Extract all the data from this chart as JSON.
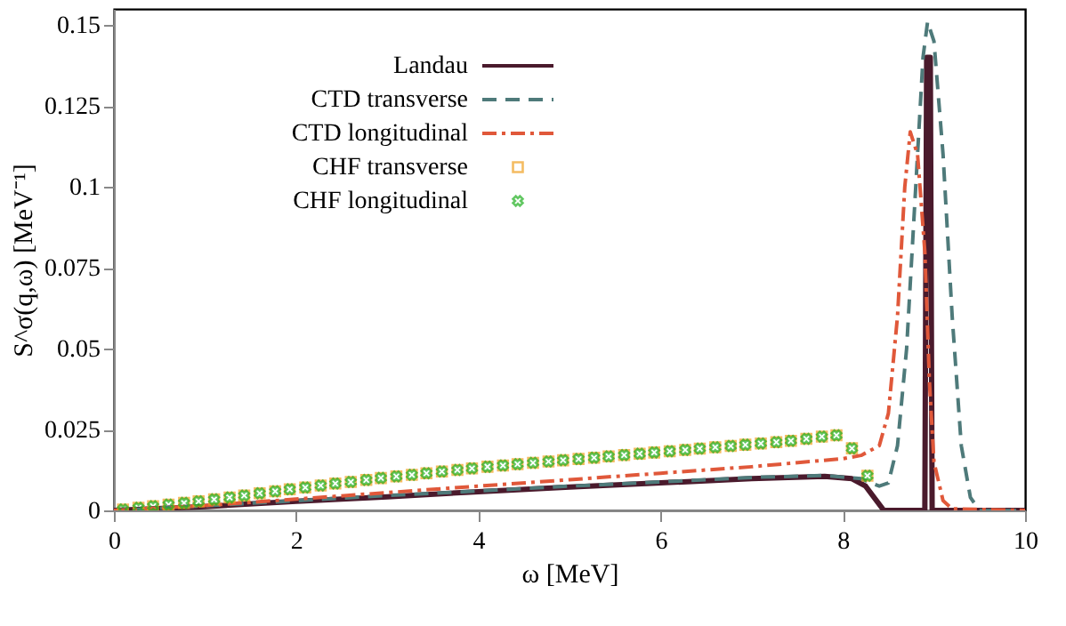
{
  "chart_data": {
    "type": "line",
    "xlabel": "ω [MeV]",
    "ylabel": "S^σ(q,ω) [MeV⁻¹]",
    "xlim": [
      0,
      10
    ],
    "xticks": [
      0,
      2,
      4,
      6,
      8,
      10
    ],
    "ylim": [
      0,
      0.155
    ],
    "yticks": [
      0,
      0.025,
      0.05,
      0.075,
      0.1,
      0.125,
      0.15
    ],
    "grid": false,
    "legend": "top left",
    "series": [
      {
        "name": "Landau",
        "color": "#4a1a2c",
        "line_style": "solid",
        "x": [
          0,
          1,
          2,
          3,
          4,
          5,
          6,
          7,
          7.8,
          8.1,
          8.25,
          8.45,
          8.9,
          8.92,
          8.96,
          8.98,
          10
        ],
        "values": [
          0,
          0.0012,
          0.0028,
          0.0042,
          0.0058,
          0.0072,
          0.0085,
          0.0098,
          0.0105,
          0.0098,
          0.0075,
          0,
          0,
          0.14,
          0.14,
          0,
          0
        ]
      },
      {
        "name": "CTD transverse",
        "color": "#4e7a7a",
        "line_style": "dashed",
        "x": [
          0,
          1,
          2,
          3,
          4,
          5,
          6,
          7,
          7.8,
          8.2,
          8.4,
          8.5,
          8.6,
          8.7,
          8.8,
          8.88,
          8.93,
          9.0,
          9.1,
          9.2,
          9.3,
          9.4,
          9.5,
          10
        ],
        "values": [
          0,
          0.0014,
          0.003,
          0.0046,
          0.006,
          0.0075,
          0.0088,
          0.0102,
          0.0108,
          0.0098,
          0.0075,
          0.0085,
          0.02,
          0.05,
          0.1,
          0.14,
          0.151,
          0.145,
          0.11,
          0.06,
          0.02,
          0.004,
          0,
          0
        ]
      },
      {
        "name": "CTD longitudinal",
        "color": "#e0583a",
        "line_style": "dashdot",
        "x": [
          0,
          1,
          2,
          3,
          4,
          5,
          6,
          7,
          8,
          8.2,
          8.4,
          8.5,
          8.6,
          8.68,
          8.74,
          8.82,
          8.9,
          8.95,
          9.0,
          9.1,
          9.2,
          10
        ],
        "values": [
          0,
          0.0015,
          0.0035,
          0.0055,
          0.0075,
          0.0095,
          0.0115,
          0.0135,
          0.016,
          0.017,
          0.02,
          0.03,
          0.06,
          0.1,
          0.117,
          0.11,
          0.08,
          0.04,
          0.015,
          0.003,
          0.0005,
          0
        ]
      },
      {
        "name": "CHF transverse",
        "type": "scatter",
        "marker": "square",
        "color": "#f0a020",
        "x": [
          0.1,
          0.27,
          0.43,
          0.6,
          0.77,
          0.93,
          1.1,
          1.27,
          1.43,
          1.6,
          1.77,
          1.93,
          2.1,
          2.27,
          2.43,
          2.6,
          2.77,
          2.93,
          3.1,
          3.27,
          3.43,
          3.6,
          3.77,
          3.93,
          4.1,
          4.27,
          4.43,
          4.6,
          4.77,
          4.93,
          5.1,
          5.27,
          5.43,
          5.6,
          5.77,
          5.93,
          6.1,
          6.27,
          6.43,
          6.6,
          6.77,
          6.93,
          7.1,
          7.27,
          7.43,
          7.6,
          7.77,
          7.93,
          8.1,
          8.27
        ],
        "values": [
          0.0003,
          0.0008,
          0.0013,
          0.0018,
          0.0023,
          0.0028,
          0.0034,
          0.004,
          0.0046,
          0.0053,
          0.0059,
          0.0065,
          0.0071,
          0.0077,
          0.0083,
          0.0088,
          0.0094,
          0.01,
          0.0105,
          0.011,
          0.0115,
          0.012,
          0.0125,
          0.013,
          0.0135,
          0.0139,
          0.0143,
          0.0147,
          0.0151,
          0.0155,
          0.0159,
          0.0163,
          0.0167,
          0.0171,
          0.0175,
          0.0179,
          0.0183,
          0.0187,
          0.0191,
          0.0195,
          0.0199,
          0.0203,
          0.0207,
          0.0211,
          0.0215,
          0.0221,
          0.0228,
          0.0232,
          0.0192,
          0.0107
        ]
      },
      {
        "name": "CHF longitudinal",
        "type": "scatter",
        "marker": "cross",
        "color": "#20b020",
        "x": [
          0.1,
          0.27,
          0.43,
          0.6,
          0.77,
          0.93,
          1.1,
          1.27,
          1.43,
          1.6,
          1.77,
          1.93,
          2.1,
          2.27,
          2.43,
          2.6,
          2.77,
          2.93,
          3.1,
          3.27,
          3.43,
          3.6,
          3.77,
          3.93,
          4.1,
          4.27,
          4.43,
          4.6,
          4.77,
          4.93,
          5.1,
          5.27,
          5.43,
          5.6,
          5.77,
          5.93,
          6.1,
          6.27,
          6.43,
          6.6,
          6.77,
          6.93,
          7.1,
          7.27,
          7.43,
          7.6,
          7.77,
          7.93,
          8.1,
          8.27
        ],
        "values": [
          0.0003,
          0.0008,
          0.0013,
          0.0018,
          0.0023,
          0.0028,
          0.0034,
          0.004,
          0.0046,
          0.0053,
          0.0059,
          0.0065,
          0.0071,
          0.0077,
          0.0083,
          0.0088,
          0.0094,
          0.01,
          0.0105,
          0.011,
          0.0115,
          0.012,
          0.0125,
          0.013,
          0.0135,
          0.0139,
          0.0143,
          0.0147,
          0.0151,
          0.0155,
          0.0159,
          0.0163,
          0.0167,
          0.0171,
          0.0175,
          0.0179,
          0.0183,
          0.0187,
          0.0191,
          0.0195,
          0.0199,
          0.0203,
          0.0207,
          0.0211,
          0.0215,
          0.0221,
          0.0228,
          0.0232,
          0.0192,
          0.0107
        ]
      }
    ]
  }
}
